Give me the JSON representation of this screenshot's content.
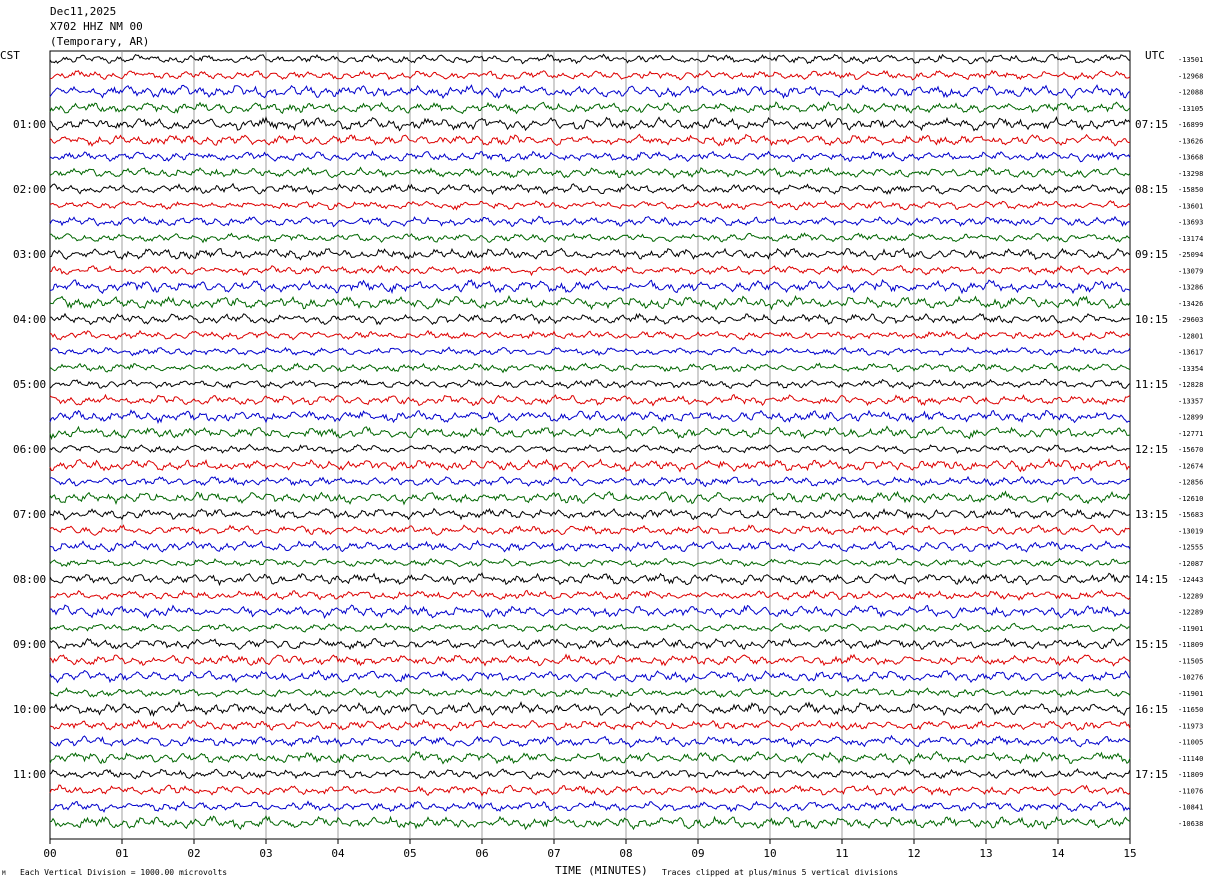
{
  "header": {
    "date": "Dec11,2025",
    "station": "X702 HHZ NM 00",
    "location": "(Temporary, AR)"
  },
  "left_tz": "CST",
  "right_tz": "UTC",
  "footer": {
    "scale_note": "Each Vertical Division = 1000.00 microvolts",
    "clip_note": "Traces clipped at plus/minus 5 vertical divisions",
    "corner_mark": "M"
  },
  "chart_data": {
    "type": "line",
    "xlabel": "TIME (MINUTES)",
    "xlim": [
      0,
      15
    ],
    "x_ticks": [
      "00",
      "01",
      "02",
      "03",
      "04",
      "05",
      "06",
      "07",
      "08",
      "09",
      "10",
      "11",
      "12",
      "13",
      "14",
      "15"
    ],
    "left_hour_labels": [
      "01:00",
      "02:00",
      "03:00",
      "04:00",
      "05:00",
      "06:00",
      "07:00",
      "08:00",
      "09:00",
      "10:00",
      "11:00"
    ],
    "right_hour_labels": [
      "07:15",
      "08:15",
      "09:15",
      "10:15",
      "11:15",
      "12:15",
      "13:15",
      "14:15",
      "15:15",
      "16:15",
      "17:15"
    ],
    "trace_colors": [
      "#000000",
      "#dd0000",
      "#0000cc",
      "#006600"
    ],
    "trace_offsets": [
      "-13501",
      "-12968",
      "-12088",
      "-13105",
      "-16899",
      "-13626",
      "-13668",
      "-13298",
      "-15850",
      "-13601",
      "-13693",
      "-13174",
      "-25094",
      "-13079",
      "-13286",
      "-13426",
      "-29603",
      "-12801",
      "-13617",
      "-13354",
      "-12828",
      "-13357",
      "-12899",
      "-12771",
      "-15670",
      "-12674",
      "-12856",
      "-12610",
      "-15683",
      "-13019",
      "-12555",
      "-12087",
      "-12443",
      "-12289",
      "-12289",
      "-11901",
      "-11809",
      "-11505",
      "-10276",
      "-11901",
      "-11650",
      "-11973",
      "-11005",
      "-11140",
      "-11809",
      "-11076",
      "-10841",
      "-10638"
    ],
    "grid": true
  }
}
